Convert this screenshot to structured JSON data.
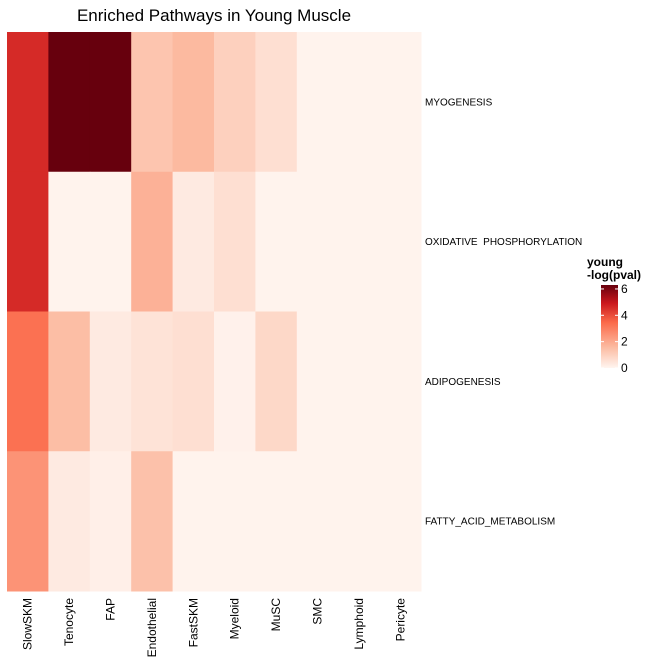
{
  "chart_data": {
    "type": "heatmap",
    "title": "Enriched Pathways in Young Muscle",
    "xlabel": "",
    "ylabel": "",
    "columns": [
      "SlowSKM",
      "Tenocyte",
      "FAP",
      "Endothelial",
      "FastSKM",
      "Myeloid",
      "MuSC",
      "SMC",
      "Lymphoid",
      "Pericyte"
    ],
    "rows": [
      "MYOGENESIS",
      "OXIDATIVE_PHOSPHORYLATION",
      "ADIPOGENESIS",
      "FATTY_ACID_METABOLISM"
    ],
    "row_labels_display": [
      "MYOGENESIS",
      "OXIDATIVE  PHOSPHORYLATION",
      "ADIPOGENESIS",
      "FATTY_ACID_METABOLISM"
    ],
    "values": [
      [
        4.6,
        6.3,
        6.3,
        1.3,
        1.6,
        1.0,
        0.6,
        0.05,
        0.05,
        0.05
      ],
      [
        4.6,
        0.05,
        0.05,
        1.8,
        0.3,
        0.6,
        0.05,
        0.05,
        0.05,
        0.05
      ],
      [
        3.3,
        1.5,
        0.3,
        0.5,
        0.6,
        0.1,
        0.8,
        0.05,
        0.05,
        0.05
      ],
      [
        2.5,
        0.3,
        0.15,
        1.4,
        0.05,
        0.05,
        0.05,
        0.05,
        0.05,
        0.05
      ]
    ],
    "legend": {
      "title_lines": [
        "young",
        "-log(pval)"
      ],
      "ticks": [
        0,
        2,
        4,
        6
      ],
      "range": [
        0,
        6.3
      ],
      "position": "right"
    },
    "colors": {
      "low": "#fff5f0",
      "mid_low": "#fcbba1",
      "mid": "#fb6a4a",
      "mid_high": "#cb181d",
      "high": "#67000d"
    },
    "grid": false
  }
}
